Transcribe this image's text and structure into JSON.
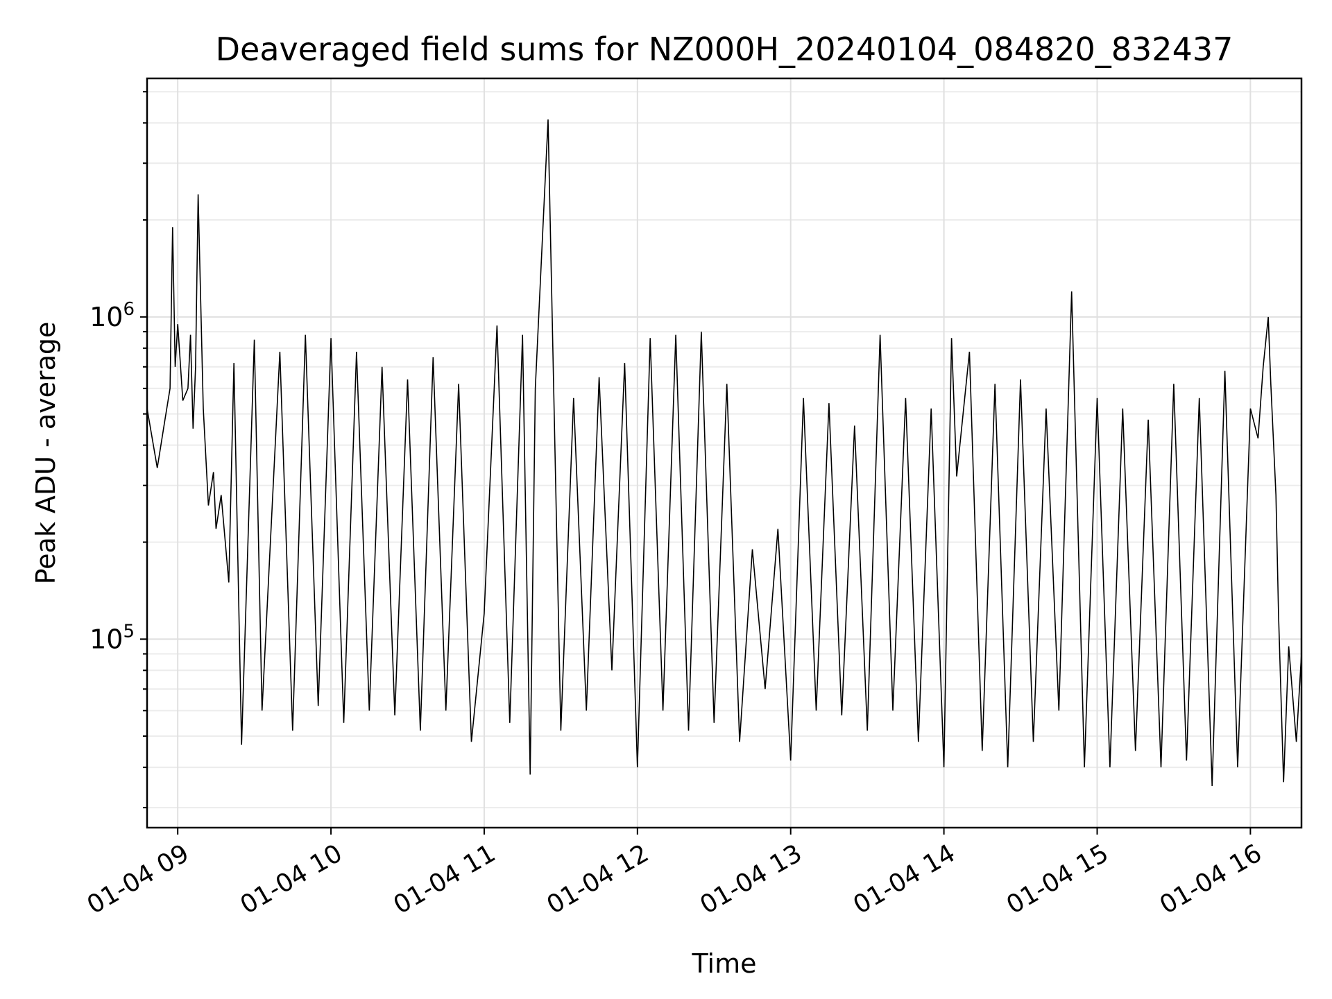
{
  "chart_data": {
    "type": "line",
    "title": "Deaveraged field sums for NZ000H_20240104_084820_832437",
    "xlabel": "Time",
    "ylabel": "Peak ADU - average",
    "yscale": "log",
    "ylim": [
      26000,
      5500000
    ],
    "xlim": [
      "2024-01-04 08:48",
      "2024-01-04 16:20"
    ],
    "x_ticks": [
      "2024-01-04 09:00",
      "2024-01-04 10:00",
      "2024-01-04 11:00",
      "2024-01-04 12:00",
      "2024-01-04 13:00",
      "2024-01-04 14:00",
      "2024-01-04 15:00",
      "2024-01-04 16:00"
    ],
    "x_tick_labels": [
      "01-04 09",
      "01-04 10",
      "01-04 11",
      "01-04 12",
      "01-04 13",
      "01-04 14",
      "01-04 15",
      "01-04 16"
    ],
    "y_tick_labels": [
      {
        "base": "10",
        "exp": "5",
        "value": 100000
      },
      {
        "base": "10",
        "exp": "6",
        "value": 1000000
      }
    ],
    "grid": true,
    "line_color": "#000000",
    "series": [
      {
        "x": [
          "2024-01-04 08:48",
          "2024-01-04 08:52",
          "2024-01-04 08:55",
          "2024-01-04 08:57",
          "2024-01-04 08:58",
          "2024-01-04 08:59",
          "2024-01-04 09:00",
          "2024-01-04 09:02",
          "2024-01-04 09:04",
          "2024-01-04 09:05",
          "2024-01-04 09:06",
          "2024-01-04 09:07",
          "2024-01-04 09:08",
          "2024-01-04 09:10",
          "2024-01-04 09:12",
          "2024-01-04 09:14",
          "2024-01-04 09:15",
          "2024-01-04 09:17",
          "2024-01-04 09:20",
          "2024-01-04 09:22",
          "2024-01-04 09:25",
          "2024-01-04 09:30",
          "2024-01-04 09:33",
          "2024-01-04 09:40",
          "2024-01-04 09:45",
          "2024-01-04 09:50",
          "2024-01-04 09:55",
          "2024-01-04 10:00",
          "2024-01-04 10:05",
          "2024-01-04 10:10",
          "2024-01-04 10:15",
          "2024-01-04 10:20",
          "2024-01-04 10:25",
          "2024-01-04 10:30",
          "2024-01-04 10:35",
          "2024-01-04 10:40",
          "2024-01-04 10:45",
          "2024-01-04 10:50",
          "2024-01-04 10:55",
          "2024-01-04 11:00",
          "2024-01-04 11:05",
          "2024-01-04 11:10",
          "2024-01-04 11:15",
          "2024-01-04 11:18",
          "2024-01-04 11:20",
          "2024-01-04 11:25",
          "2024-01-04 11:30",
          "2024-01-04 11:35",
          "2024-01-04 11:40",
          "2024-01-04 11:45",
          "2024-01-04 11:50",
          "2024-01-04 11:55",
          "2024-01-04 12:00",
          "2024-01-04 12:05",
          "2024-01-04 12:10",
          "2024-01-04 12:15",
          "2024-01-04 12:20",
          "2024-01-04 12:25",
          "2024-01-04 12:30",
          "2024-01-04 12:35",
          "2024-01-04 12:40",
          "2024-01-04 12:45",
          "2024-01-04 12:50",
          "2024-01-04 12:55",
          "2024-01-04 13:00",
          "2024-01-04 13:05",
          "2024-01-04 13:10",
          "2024-01-04 13:15",
          "2024-01-04 13:20",
          "2024-01-04 13:25",
          "2024-01-04 13:30",
          "2024-01-04 13:35",
          "2024-01-04 13:40",
          "2024-01-04 13:45",
          "2024-01-04 13:50",
          "2024-01-04 13:55",
          "2024-01-04 14:00",
          "2024-01-04 14:03",
          "2024-01-04 14:05",
          "2024-01-04 14:10",
          "2024-01-04 14:15",
          "2024-01-04 14:20",
          "2024-01-04 14:25",
          "2024-01-04 14:30",
          "2024-01-04 14:35",
          "2024-01-04 14:40",
          "2024-01-04 14:45",
          "2024-01-04 14:50",
          "2024-01-04 14:55",
          "2024-01-04 15:00",
          "2024-01-04 15:05",
          "2024-01-04 15:10",
          "2024-01-04 15:15",
          "2024-01-04 15:20",
          "2024-01-04 15:25",
          "2024-01-04 15:30",
          "2024-01-04 15:35",
          "2024-01-04 15:40",
          "2024-01-04 15:45",
          "2024-01-04 15:50",
          "2024-01-04 15:55",
          "2024-01-04 16:00",
          "2024-01-04 16:03",
          "2024-01-04 16:05",
          "2024-01-04 16:07",
          "2024-01-04 16:08",
          "2024-01-04 16:10",
          "2024-01-04 16:11",
          "2024-01-04 16:13",
          "2024-01-04 16:15",
          "2024-01-04 16:18",
          "2024-01-04 16:20"
        ],
        "values": [
          520000,
          340000,
          480000,
          600000,
          1900000,
          700000,
          950000,
          550000,
          600000,
          880000,
          450000,
          700000,
          2400000,
          520000,
          260000,
          330000,
          220000,
          280000,
          150000,
          720000,
          47000,
          850000,
          60000,
          780000,
          52000,
          880000,
          62000,
          860000,
          55000,
          780000,
          60000,
          700000,
          58000,
          640000,
          52000,
          750000,
          60000,
          620000,
          48000,
          120000,
          940000,
          55000,
          880000,
          38000,
          600000,
          4100000,
          52000,
          560000,
          60000,
          650000,
          80000,
          720000,
          40000,
          860000,
          60000,
          880000,
          52000,
          900000,
          55000,
          620000,
          48000,
          190000,
          70000,
          220000,
          42000,
          560000,
          60000,
          540000,
          58000,
          460000,
          52000,
          880000,
          60000,
          560000,
          48000,
          520000,
          40000,
          860000,
          320000,
          780000,
          45000,
          620000,
          40000,
          640000,
          48000,
          520000,
          60000,
          1200000,
          40000,
          560000,
          40000,
          520000,
          45000,
          480000,
          40000,
          620000,
          42000,
          560000,
          35000,
          680000,
          40000,
          520000,
          420000,
          700000,
          1000000,
          620000,
          280000,
          120000,
          36000,
          95000,
          48000,
          90000
        ]
      }
    ]
  }
}
